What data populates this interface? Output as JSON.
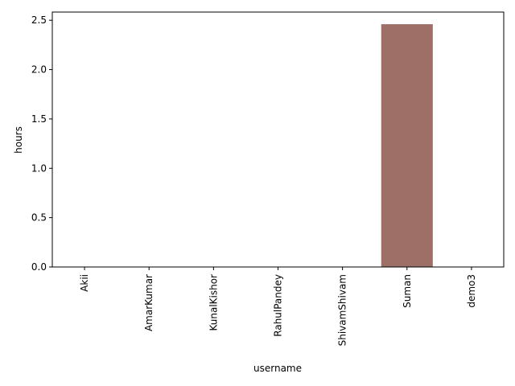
{
  "chart_data": {
    "type": "bar",
    "categories": [
      "Akii",
      "AmarKumar",
      "KunalKishor",
      "RahulPandey",
      "ShivamShivam",
      "Suman",
      "demo3"
    ],
    "values": [
      0,
      0,
      0,
      0,
      0,
      2.46,
      0
    ],
    "colors": [
      "#1f77b4",
      "#ff7f0e",
      "#2ca02c",
      "#d62728",
      "#9467bd",
      "#8c564b",
      "#e377c2"
    ],
    "bar_opacity": 0.85,
    "xlabel": "username",
    "ylabel": "hours",
    "ylim": [
      0,
      2.583
    ],
    "yticks": [
      0.0,
      0.5,
      1.0,
      1.5,
      2.0,
      2.5
    ],
    "ytick_labels": [
      "0.0",
      "0.5",
      "1.0",
      "1.5",
      "2.0",
      "2.5"
    ],
    "grid": false,
    "legend": "none"
  }
}
